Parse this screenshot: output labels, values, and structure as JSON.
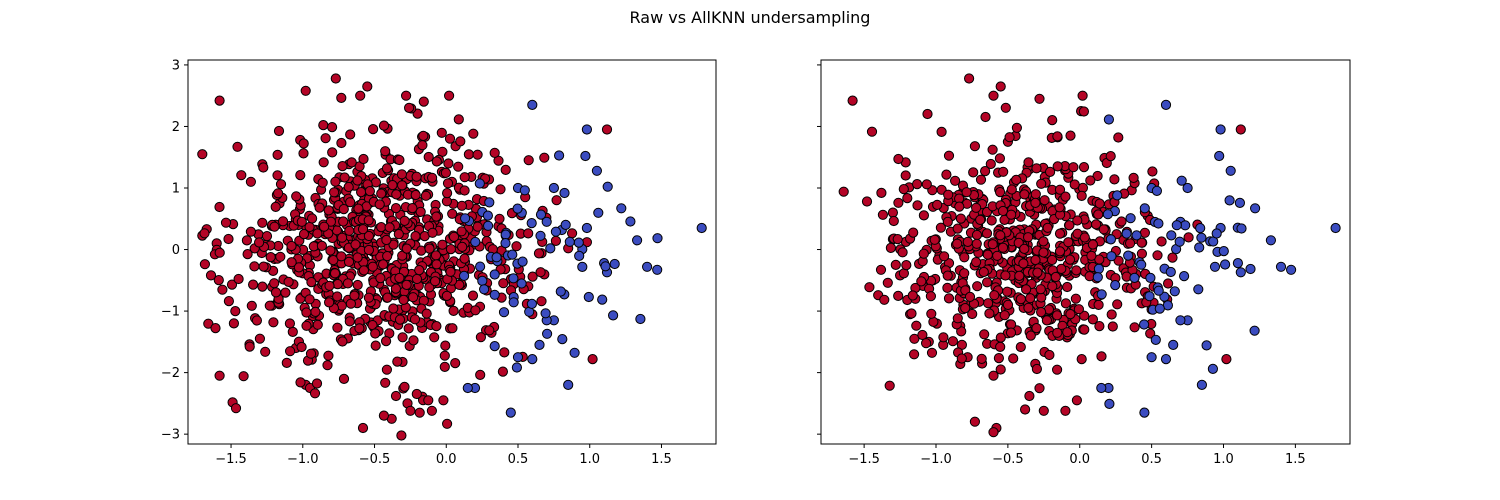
{
  "figure": {
    "title": "Raw vs AllKNN undersampling"
  },
  "colors": {
    "class_a": "#b40426",
    "class_b": "#3b4cc0",
    "edge": "#000000"
  },
  "chart_data": [
    {
      "type": "scatter",
      "title": "",
      "xlabel": "",
      "ylabel": "",
      "xlim": [
        -1.8,
        1.88
      ],
      "ylim": [
        -3.16,
        3.08
      ],
      "xticks": [
        -1.5,
        -1.0,
        -0.5,
        0.0,
        0.5,
        1.0,
        1.5
      ],
      "xtick_labels": [
        "−1.5",
        "−1.0",
        "−0.5",
        "0.0",
        "0.5",
        "1.0",
        "1.5"
      ],
      "yticks": [
        -3,
        -2,
        -1,
        0,
        1,
        2,
        3
      ],
      "ytick_labels": [
        "−3",
        "−2",
        "−1",
        "0",
        "1",
        "2",
        "3"
      ],
      "show_yticklabels": true,
      "grid": false,
      "series": [
        {
          "class": "majority",
          "color": "#b40426",
          "count_estimate": 860,
          "center": [
            -0.45,
            0.0
          ],
          "spread": [
            0.52,
            0.9
          ],
          "points": [
            [
              -1.7,
              1.55
            ],
            [
              -1.58,
              2.42
            ],
            [
              -0.98,
              2.58
            ],
            [
              -0.77,
              2.78
            ],
            [
              -0.55,
              2.65
            ],
            [
              -0.6,
              2.5
            ],
            [
              -0.28,
              2.5
            ],
            [
              0.02,
              2.5
            ],
            [
              -1.67,
              0.33
            ],
            [
              -1.6,
              0.1
            ],
            [
              -1.64,
              -0.42
            ],
            [
              -1.58,
              -2.05
            ],
            [
              -1.48,
              -1.2
            ],
            [
              -1.47,
              -1.0
            ],
            [
              -0.98,
              -2.2
            ],
            [
              -0.95,
              -2.25
            ],
            [
              -0.58,
              -2.9
            ],
            [
              -0.38,
              -2.75
            ],
            [
              -0.27,
              -2.5
            ],
            [
              -0.25,
              -2.62
            ],
            [
              -0.1,
              -2.62
            ],
            [
              -0.02,
              -2.45
            ],
            [
              1.02,
              -1.78
            ],
            [
              1.12,
              1.95
            ],
            [
              -0.35,
              -2.38
            ],
            [
              0.85,
              0.02
            ],
            [
              0.98,
              0.12
            ],
            [
              0.6,
              -1.05
            ],
            [
              0.55,
              0.85
            ]
          ]
        },
        {
          "class": "minority",
          "color": "#3b4cc0",
          "count_estimate": 90,
          "center": [
            0.6,
            0.0
          ],
          "spread": [
            0.35,
            0.8
          ],
          "points": [
            [
              1.78,
              0.35
            ],
            [
              1.47,
              -0.33
            ],
            [
              1.4,
              -0.28
            ],
            [
              1.33,
              0.15
            ],
            [
              1.22,
              0.67
            ],
            [
              1.1,
              -0.22
            ],
            [
              1.12,
              -0.37
            ],
            [
              1.05,
              1.28
            ],
            [
              0.98,
              1.95
            ],
            [
              0.97,
              1.52
            ],
            [
              0.98,
              0.35
            ],
            [
              0.85,
              -2.2
            ],
            [
              0.75,
              -1.15
            ],
            [
              0.7,
              -1.15
            ],
            [
              0.45,
              -2.65
            ],
            [
              0.2,
              -2.25
            ],
            [
              0.15,
              -2.25
            ],
            [
              0.6,
              2.35
            ],
            [
              0.5,
              1.0
            ],
            [
              0.75,
              1.0
            ],
            [
              0.5,
              -1.75
            ],
            [
              0.6,
              -1.78
            ],
            [
              0.65,
              -1.55
            ],
            [
              0.7,
              0.45
            ]
          ]
        }
      ]
    },
    {
      "type": "scatter",
      "title": "",
      "xlabel": "",
      "ylabel": "",
      "xlim": [
        -1.8,
        1.88
      ],
      "ylim": [
        -3.16,
        3.08
      ],
      "xticks": [
        -1.5,
        -1.0,
        -0.5,
        0.0,
        0.5,
        1.0,
        1.5
      ],
      "xtick_labels": [
        "−1.5",
        "−1.0",
        "−0.5",
        "0.0",
        "0.5",
        "1.0",
        "1.5"
      ],
      "yticks": [
        -3,
        -2,
        -1,
        0,
        1,
        2,
        3
      ],
      "ytick_labels": [
        "−3",
        "−2",
        "−1",
        "0",
        "1",
        "2",
        "3"
      ],
      "show_yticklabels": false,
      "grid": false,
      "series": [
        {
          "class": "majority",
          "color": "#b40426",
          "count_estimate": 700,
          "center": [
            -0.4,
            0.0
          ],
          "spread": [
            0.45,
            0.85
          ],
          "points": [
            [
              -1.58,
              2.42
            ],
            [
              -0.77,
              2.78
            ],
            [
              -0.55,
              2.65
            ],
            [
              -0.6,
              2.5
            ],
            [
              -0.28,
              2.45
            ],
            [
              0.02,
              2.5
            ],
            [
              -1.48,
              0.78
            ],
            [
              -1.38,
              0.92
            ],
            [
              -1.3,
              0.6
            ],
            [
              -1.3,
              0.17
            ],
            [
              -1.28,
              -0.25
            ],
            [
              -1.25,
              -0.42
            ],
            [
              -1.2,
              -0.82
            ],
            [
              -1.18,
              -1.05
            ],
            [
              -1.15,
              -1.45
            ],
            [
              -1.05,
              -1.5
            ],
            [
              -0.95,
              -1.55
            ],
            [
              -0.82,
              -1.55
            ],
            [
              -0.78,
              -1.75
            ],
            [
              -0.58,
              -2.9
            ],
            [
              -0.55,
              -1.95
            ],
            [
              -0.6,
              -2.05
            ],
            [
              -0.38,
              -2.6
            ],
            [
              -0.25,
              -2.62
            ],
            [
              -0.1,
              -2.62
            ],
            [
              -0.02,
              -2.45
            ],
            [
              1.02,
              -1.78
            ],
            [
              1.12,
              1.95
            ],
            [
              -0.35,
              -2.38
            ]
          ]
        },
        {
          "class": "minority",
          "color": "#3b4cc0",
          "count_estimate": 85,
          "center": [
            0.6,
            0.0
          ],
          "spread": [
            0.35,
            0.8
          ],
          "points": [
            [
              1.78,
              0.35
            ],
            [
              1.47,
              -0.33
            ],
            [
              1.4,
              -0.28
            ],
            [
              1.33,
              0.15
            ],
            [
              1.22,
              0.67
            ],
            [
              1.1,
              -0.22
            ],
            [
              1.12,
              -0.37
            ],
            [
              1.05,
              1.28
            ],
            [
              0.98,
              1.95
            ],
            [
              0.97,
              1.52
            ],
            [
              0.98,
              0.35
            ],
            [
              0.85,
              -2.2
            ],
            [
              0.75,
              -1.15
            ],
            [
              0.7,
              -1.15
            ],
            [
              0.45,
              -2.65
            ],
            [
              0.2,
              -2.25
            ],
            [
              0.15,
              -2.25
            ],
            [
              0.6,
              2.35
            ],
            [
              0.5,
              1.0
            ],
            [
              0.75,
              1.0
            ],
            [
              0.5,
              -1.75
            ],
            [
              0.6,
              -1.78
            ],
            [
              0.65,
              -1.55
            ],
            [
              0.7,
              0.45
            ]
          ]
        }
      ]
    }
  ]
}
